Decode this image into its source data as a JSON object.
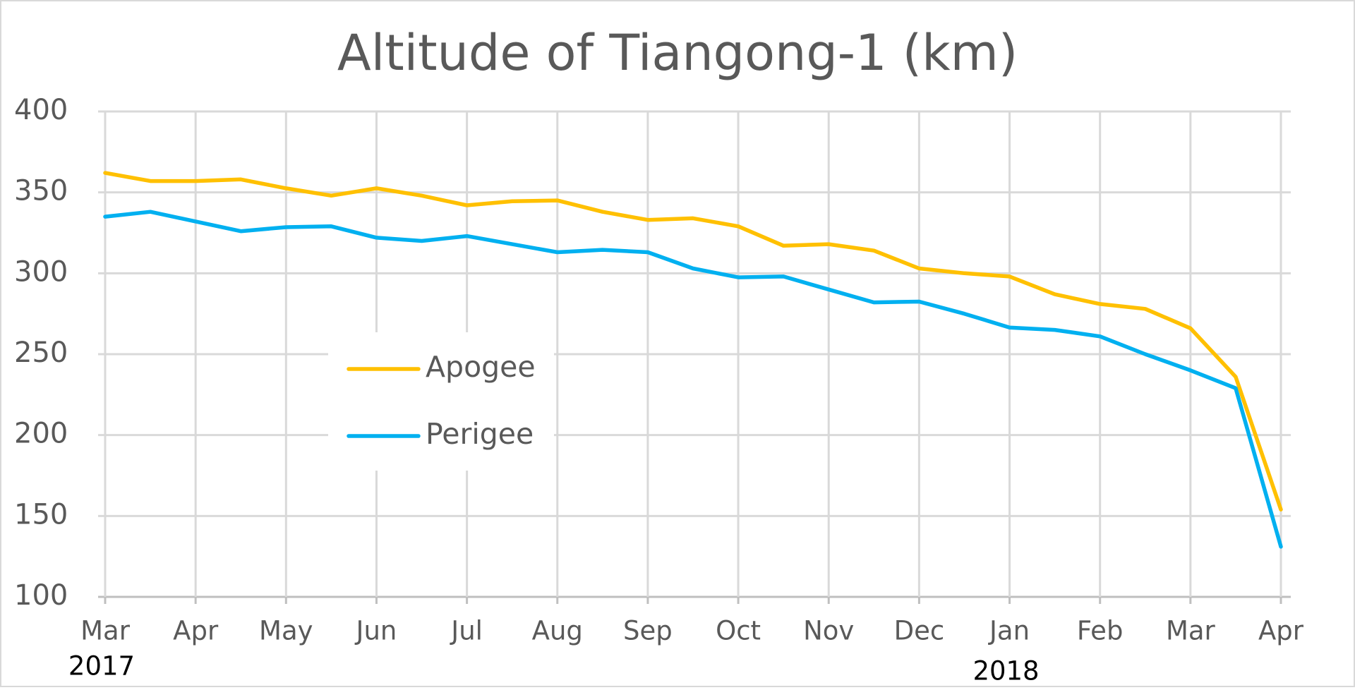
{
  "chart_data": {
    "type": "line",
    "title": "Altitude of Tiangong-1 (km)",
    "categories": [
      "Mar",
      null,
      "Apr",
      null,
      "May",
      null,
      "Jun",
      null,
      "Jul",
      null,
      "Aug",
      null,
      "Sep",
      null,
      "Oct",
      null,
      "Nov",
      null,
      "Dec",
      null,
      "Jan",
      null,
      "Feb",
      null,
      "Mar",
      null,
      "Apr"
    ],
    "years": [
      "2017",
      null,
      null,
      null,
      null,
      null,
      null,
      null,
      null,
      null,
      null,
      null,
      null,
      null,
      null,
      null,
      null,
      null,
      null,
      null,
      "2018",
      null,
      null,
      null,
      null,
      null,
      null
    ],
    "series": [
      {
        "name": "Apogee",
        "color": "#ffc000",
        "values": [
          362,
          357,
          357,
          358,
          352.5,
          348,
          352.5,
          348,
          342,
          344.5,
          345,
          338,
          333,
          334,
          329,
          317,
          318,
          314,
          303,
          300,
          298,
          287,
          281,
          278,
          266,
          236,
          154
        ]
      },
      {
        "name": "Perigee",
        "color": "#00b0f0",
        "values": [
          335,
          338,
          332,
          326,
          328.5,
          329,
          322,
          320,
          323,
          318,
          313,
          314.5,
          313,
          303,
          297.5,
          298,
          290,
          282,
          282.5,
          275,
          266.5,
          265,
          261,
          250,
          240,
          229,
          131
        ]
      }
    ],
    "ylim": [
      100,
      400
    ],
    "yticks": [
      100,
      150,
      200,
      250,
      300,
      350,
      400
    ],
    "grid": true
  }
}
